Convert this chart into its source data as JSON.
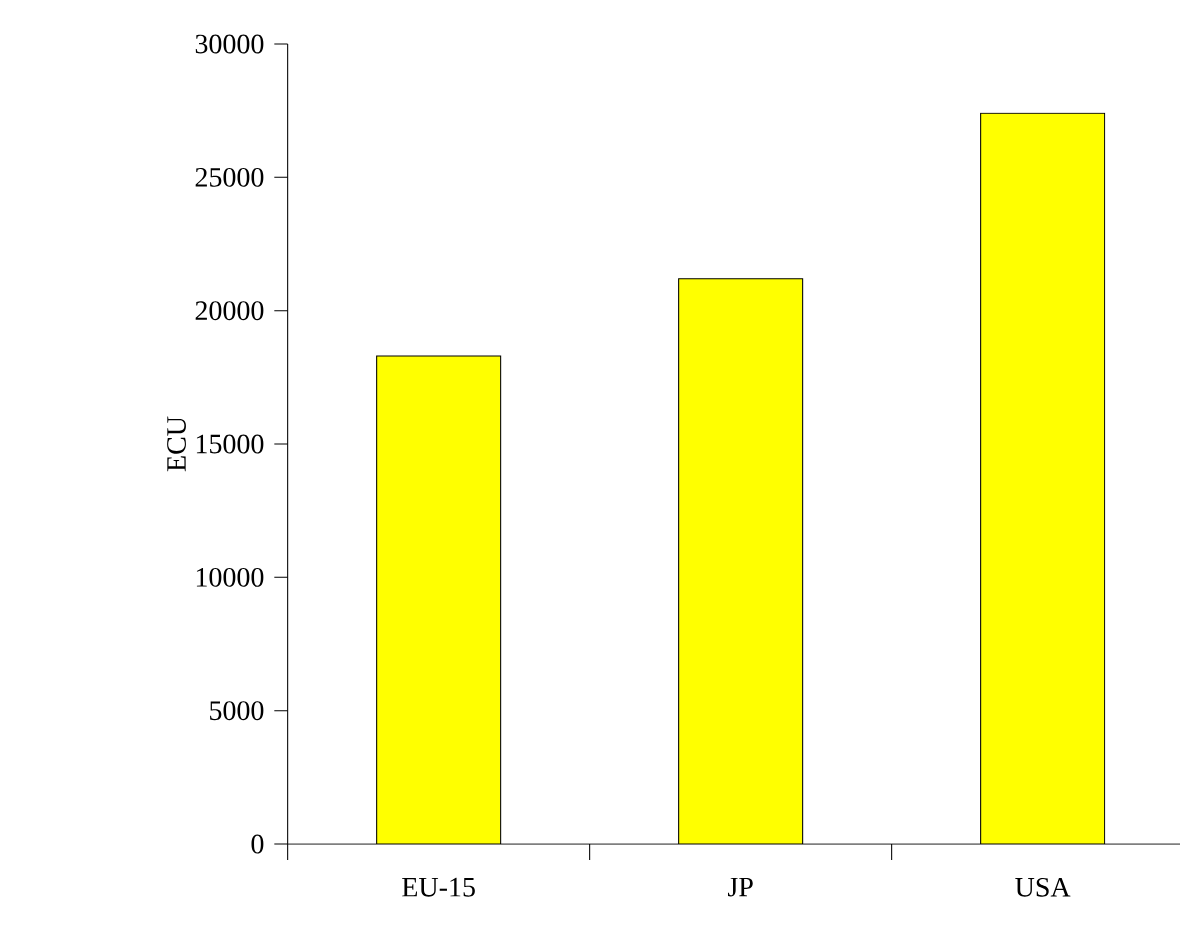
{
  "chart_data": {
    "type": "bar",
    "ylabel": "ECU",
    "categories": [
      "EU-15",
      "JP",
      "USA"
    ],
    "values": [
      18300,
      21200,
      27400
    ],
    "color": "#ffff00",
    "ylim": [
      0,
      30000
    ],
    "yticks": [
      0,
      5000,
      10000,
      15000,
      20000,
      25000,
      30000
    ],
    "grid": false
  }
}
